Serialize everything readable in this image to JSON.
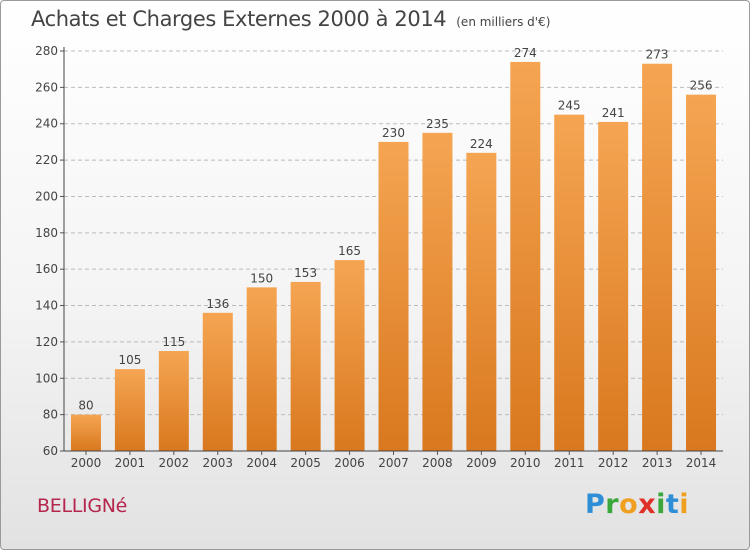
{
  "header": {
    "title": "Achats et Charges Externes 2000 à 2014",
    "unit": "(en milliers d'€)"
  },
  "footer": {
    "commune": "BELLIGNé",
    "logo_letters": [
      {
        "ch": "P",
        "color": "#2f8fd6"
      },
      {
        "ch": "r",
        "color": "#3aa83a"
      },
      {
        "ch": "o",
        "color": "#f0a020"
      },
      {
        "ch": "x",
        "color": "#e0302a"
      },
      {
        "ch": "i",
        "color": "#3aa83a"
      },
      {
        "ch": "t",
        "color": "#2f8fd6"
      },
      {
        "ch": "i",
        "color": "#f0a020"
      }
    ]
  },
  "colors": {
    "bar_top": "#f5a552",
    "bar_bottom": "#d9781e",
    "grid": "#bcbcbc",
    "text": "#444444"
  },
  "chart_data": {
    "type": "bar",
    "categories": [
      "2000",
      "2001",
      "2002",
      "2003",
      "2004",
      "2005",
      "2006",
      "2007",
      "2008",
      "2009",
      "2010",
      "2011",
      "2012",
      "2013",
      "2014"
    ],
    "values": [
      80,
      105,
      115,
      136,
      150,
      153,
      165,
      230,
      235,
      224,
      274,
      245,
      241,
      273,
      256
    ],
    "ylim": [
      60,
      280
    ],
    "yticks": [
      60,
      80,
      100,
      120,
      140,
      160,
      180,
      200,
      220,
      240,
      260,
      280
    ],
    "grid": true,
    "data_labels": true
  }
}
